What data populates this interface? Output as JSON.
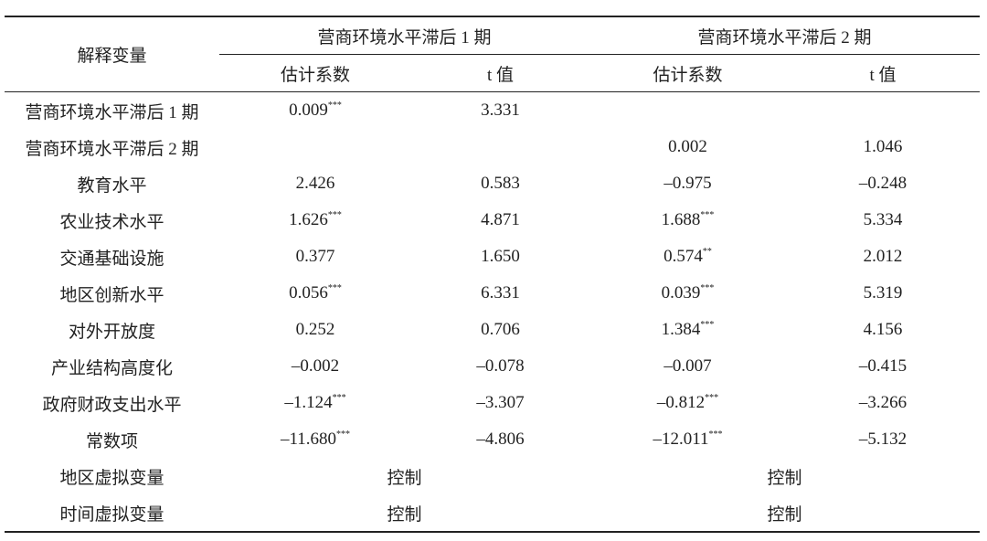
{
  "table": {
    "header": {
      "label": "解释变量",
      "groups": [
        "营商环境水平滞后 1 期",
        "营商环境水平滞后 2 期"
      ],
      "columns": [
        "估计系数",
        "t 值",
        "估计系数",
        "t 值"
      ]
    },
    "rows": [
      [
        "营商环境水平滞后 1 期",
        {
          "value": "0.009",
          "stars": "***"
        },
        "3.331",
        null,
        null
      ],
      [
        "营商环境水平滞后 2 期",
        null,
        null,
        "0.002",
        "1.046"
      ],
      [
        "教育水平",
        "2.426",
        "0.583",
        "–0.975",
        "–0.248"
      ],
      [
        "农业技术水平",
        {
          "value": "1.626",
          "stars": "***"
        },
        "4.871",
        {
          "value": "1.688",
          "stars": "***"
        },
        "5.334"
      ],
      [
        "交通基础设施",
        "0.377",
        "1.650",
        {
          "value": "0.574",
          "stars": "**"
        },
        "2.012"
      ],
      [
        "地区创新水平",
        {
          "value": "0.056",
          "stars": "***"
        },
        "6.331",
        {
          "value": "0.039",
          "stars": "***"
        },
        "5.319"
      ],
      [
        "对外开放度",
        "0.252",
        "0.706",
        {
          "value": "1.384",
          "stars": "***"
        },
        "4.156"
      ],
      [
        "产业结构高度化",
        "–0.002",
        "–0.078",
        "–0.007",
        "–0.415"
      ],
      [
        "政府财政支出水平",
        {
          "value": "–1.124",
          "stars": "***"
        },
        "–3.307",
        {
          "value": "–0.812",
          "stars": "***"
        },
        "–3.266"
      ],
      [
        "常数项",
        {
          "value": "–11.680",
          "stars": "***"
        },
        "–4.806",
        {
          "value": "–12.011",
          "stars": "***"
        },
        "–5.132"
      ],
      [
        "地区虚拟变量",
        "控制",
        "控制"
      ],
      [
        "时间虚拟变量",
        "控制",
        "控制"
      ]
    ]
  }
}
